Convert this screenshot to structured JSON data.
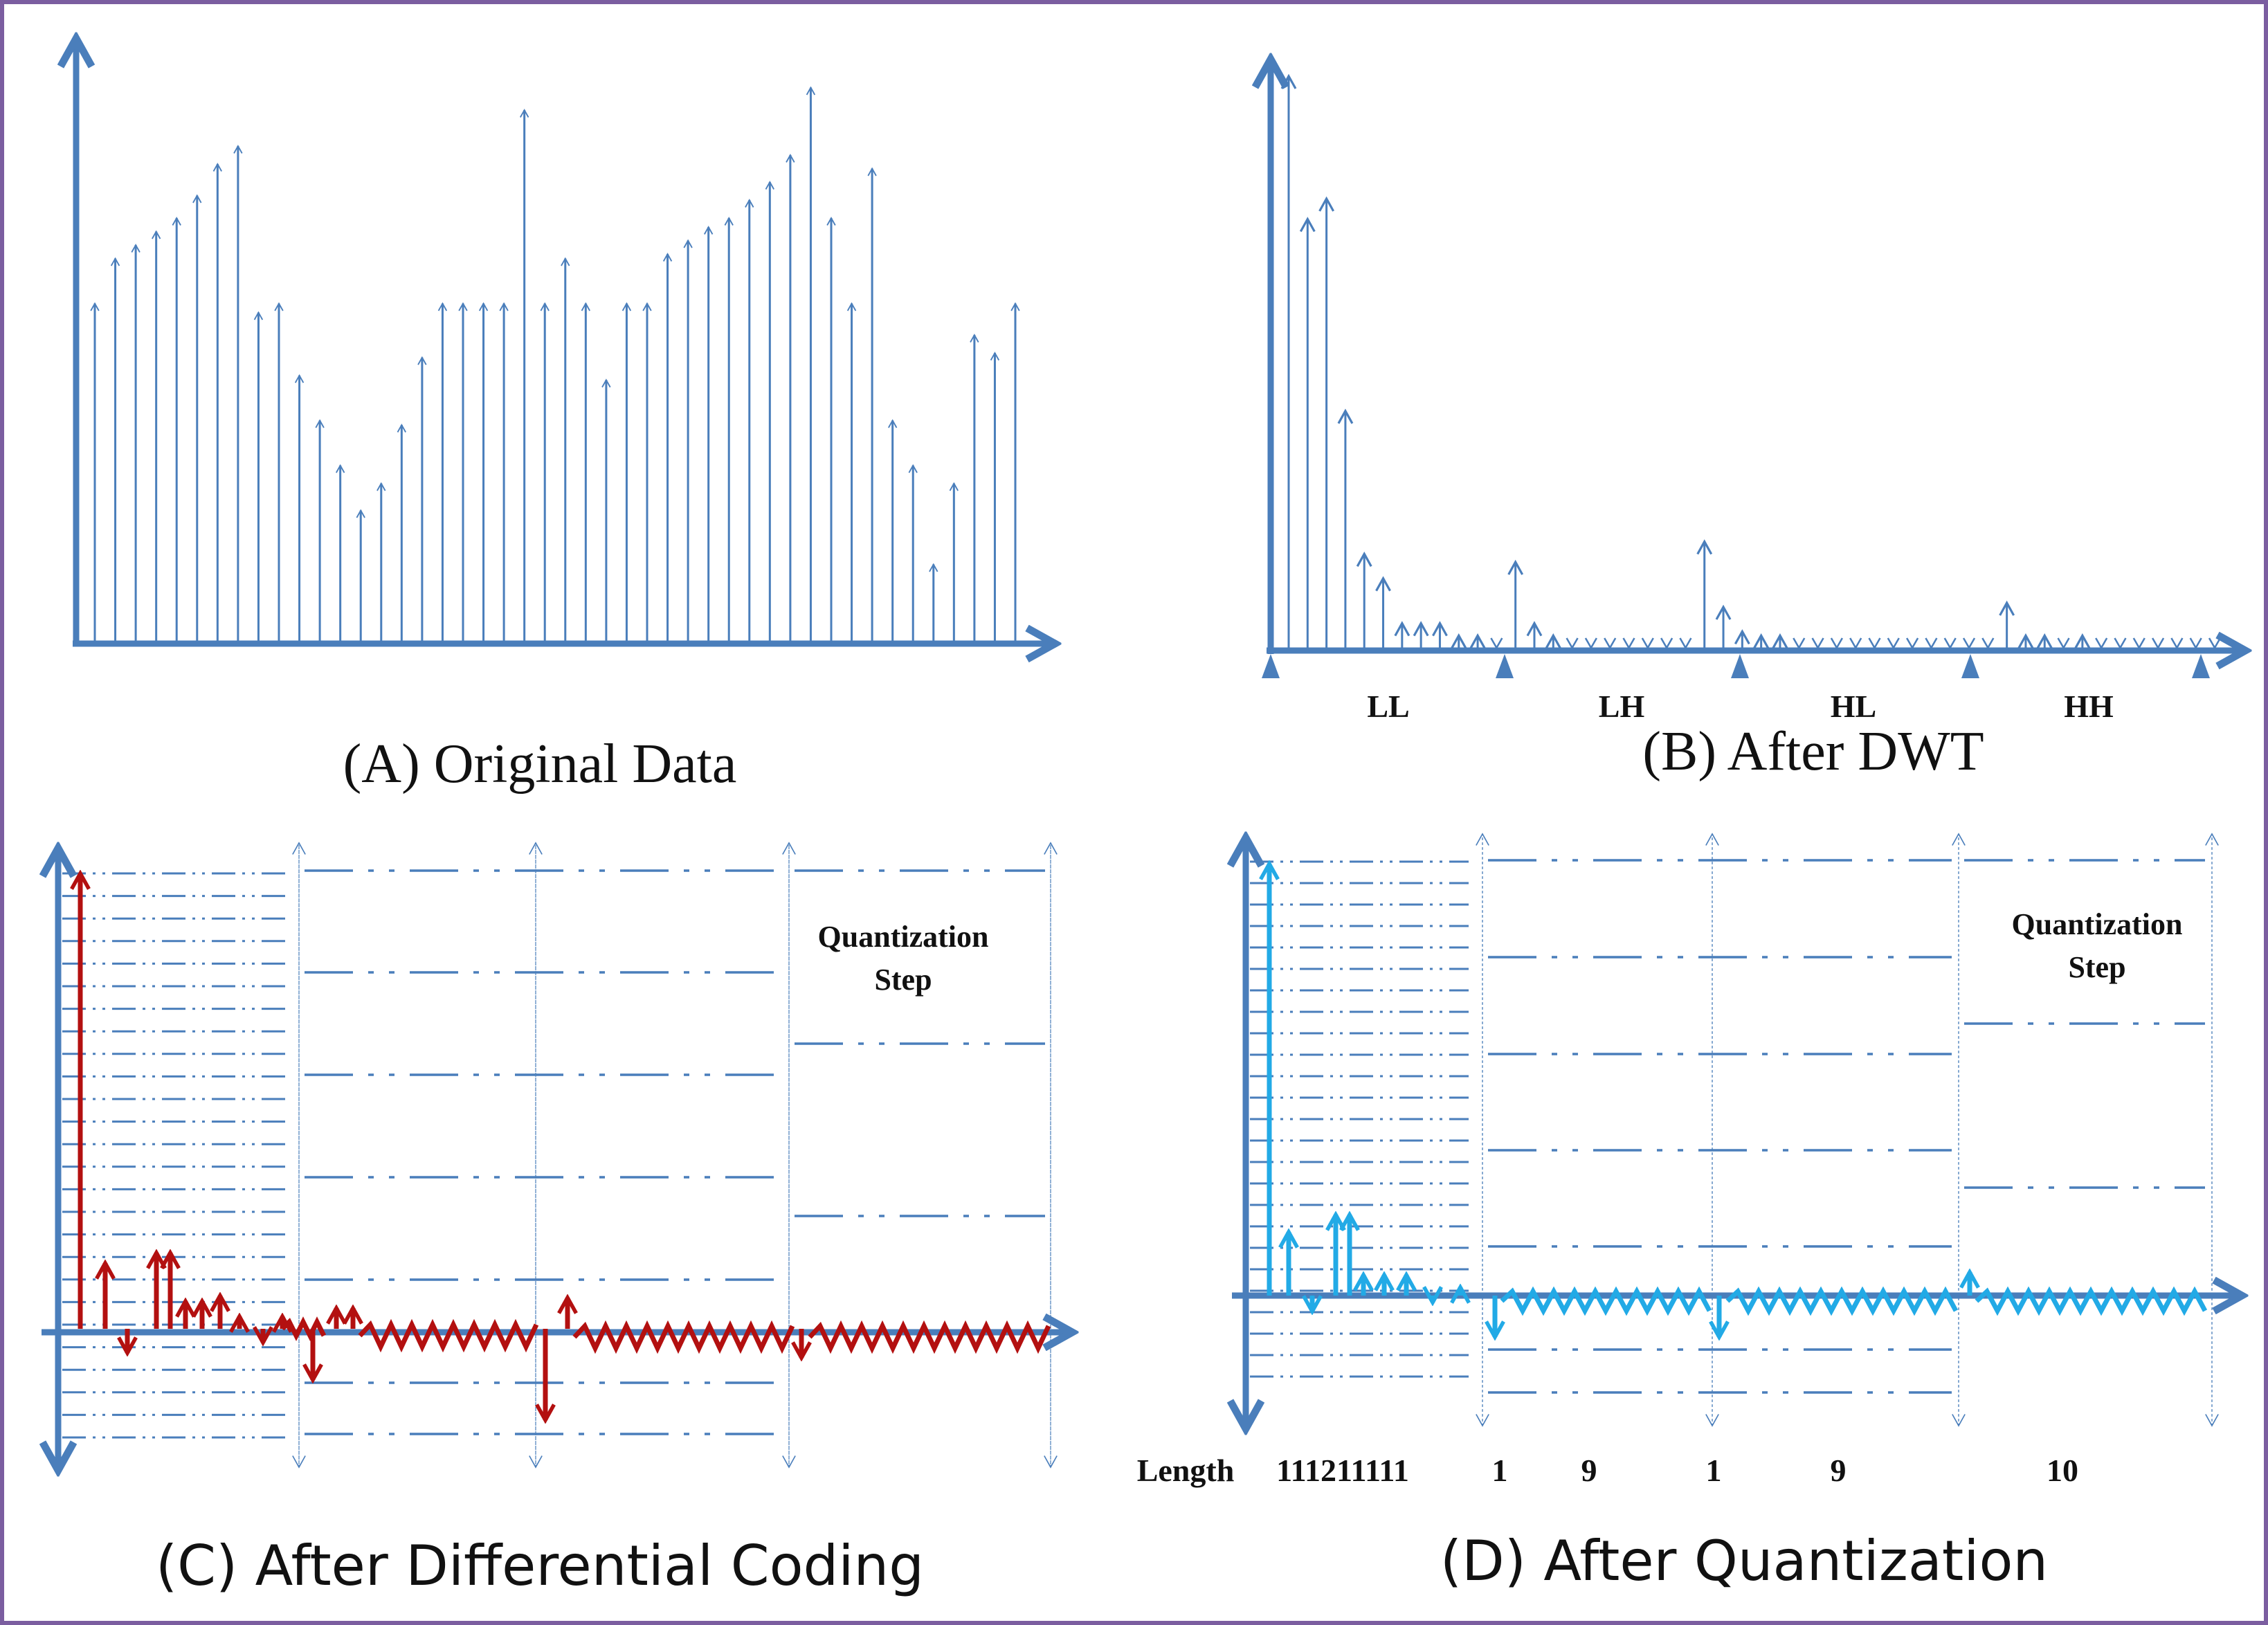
{
  "panels": {
    "a": {
      "caption": "(A) Original Data",
      "stems": [
        0.75,
        0.85,
        0.88,
        0.91,
        0.94,
        0.99,
        1.06,
        1.1,
        0.73,
        0.75,
        0.59,
        0.49,
        0.39,
        0.29,
        0.35,
        0.48,
        0.63,
        0.75,
        0.75,
        0.75,
        0.75,
        1.18,
        0.75,
        0.85,
        0.75,
        0.58,
        0.75,
        0.75,
        0.86,
        0.89,
        0.92,
        0.94,
        0.98,
        1.02,
        1.08,
        1.23,
        0.94,
        0.75,
        1.05,
        0.49,
        0.39,
        0.17,
        0.35,
        0.68,
        0.64,
        0.75
      ]
    },
    "b": {
      "caption": "(B) After DWT",
      "bands": [
        "LL",
        "LH",
        "HL",
        "HH"
      ],
      "stems": [
        1.4,
        1.05,
        1.1,
        0.58,
        0.23,
        0.17,
        0.06,
        0.06,
        0.06,
        0.03,
        0.03,
        0.0,
        0.21,
        0.06,
        0.03,
        0.0,
        0.0,
        0.0,
        0.0,
        0.0,
        0.0,
        0.0,
        0.26,
        0.1,
        0.04,
        0.03,
        0.03,
        0.0,
        0.0,
        0.0,
        0.0,
        0.0,
        0.0,
        0.0,
        0.0,
        0.0,
        0.0,
        0.0,
        0.11,
        0.03,
        0.03,
        0.0,
        0.03,
        0.0,
        0.0,
        0.0,
        0.0,
        0.0,
        0.0,
        0.0
      ]
    },
    "c": {
      "caption": "(C) After Differential Coding",
      "quant_label": "Quantization Step"
    },
    "d": {
      "caption": "(D) After Quantization",
      "quant_label": "Quantization Step",
      "length_title": "Length",
      "lengths": [
        "111211111",
        "1",
        "9",
        "1",
        "9",
        "10"
      ]
    }
  },
  "colors": {
    "axis": "#4a7ebb",
    "stem": "#4a7ebb",
    "diff": "#b31010",
    "quant": "#22aae6",
    "border": "#7b5ea0"
  }
}
